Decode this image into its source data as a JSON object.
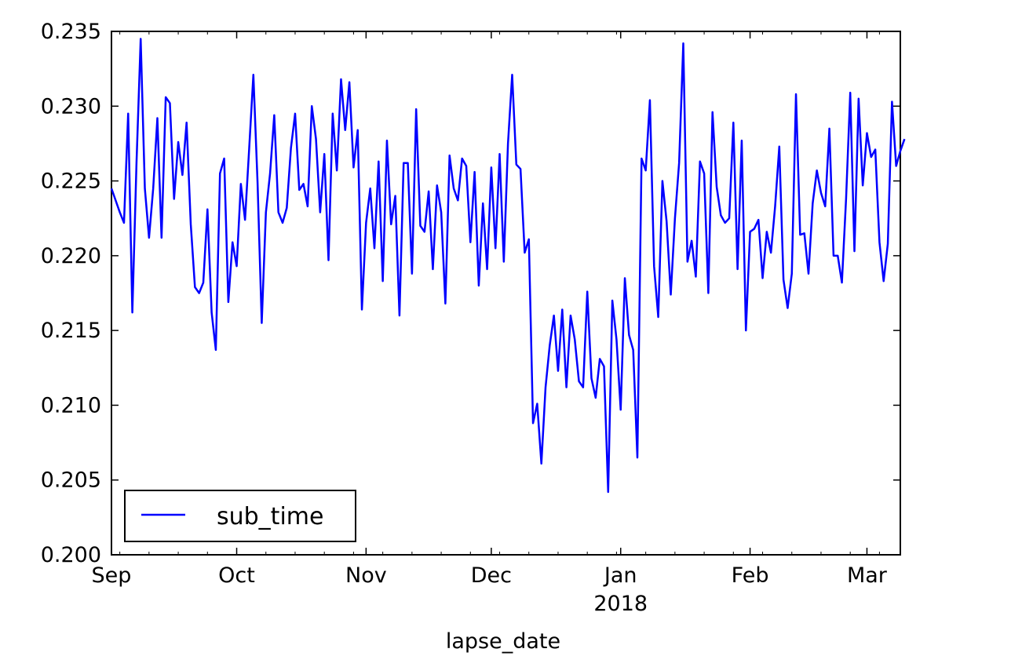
{
  "chart_data": {
    "type": "line",
    "title": "",
    "xlabel": "lapse_date",
    "ylabel": "",
    "xlim": [
      "2017-09-01",
      "2018-03-09"
    ],
    "ylim": [
      0.2,
      0.235
    ],
    "x_ticks": [
      {
        "date": "2017-09-01",
        "label": "Sep"
      },
      {
        "date": "2017-10-01",
        "label": "Oct"
      },
      {
        "date": "2017-11-01",
        "label": "Nov"
      },
      {
        "date": "2017-12-01",
        "label": "Dec"
      },
      {
        "date": "2018-01-01",
        "label": "Jan"
      },
      {
        "date": "2018-02-01",
        "label": "Feb"
      },
      {
        "date": "2018-03-01",
        "label": "Mar"
      }
    ],
    "x_sublabel": {
      "date": "2018-01-01",
      "label": "2018"
    },
    "y_ticks": [
      "0.200",
      "0.205",
      "0.210",
      "0.215",
      "0.220",
      "0.225",
      "0.230",
      "0.235"
    ],
    "grid": false,
    "legend": {
      "position": "lower-left",
      "entries": [
        {
          "name": "sub_time",
          "color": "#0000ff"
        }
      ]
    },
    "series": [
      {
        "name": "sub_time",
        "color": "#0000ff",
        "x_start": "2017-09-01",
        "x_step_days": 1,
        "values": [
          0.2245,
          0.2237,
          0.2229,
          0.2222,
          0.2295,
          0.2162,
          0.2262,
          0.2345,
          0.2245,
          0.2212,
          0.2245,
          0.2292,
          0.2212,
          0.2306,
          0.2302,
          0.2238,
          0.2276,
          0.2254,
          0.2289,
          0.2221,
          0.2179,
          0.2175,
          0.2182,
          0.2231,
          0.2162,
          0.2137,
          0.2255,
          0.2265,
          0.2169,
          0.2209,
          0.2193,
          0.2248,
          0.2224,
          0.2272,
          0.2321,
          0.2249,
          0.2155,
          0.2229,
          0.2255,
          0.2294,
          0.2229,
          0.2222,
          0.2232,
          0.2272,
          0.2295,
          0.2244,
          0.2248,
          0.2233,
          0.23,
          0.2278,
          0.2229,
          0.2268,
          0.2197,
          0.2295,
          0.2257,
          0.2318,
          0.2284,
          0.2316,
          0.2259,
          0.2284,
          0.2164,
          0.2222,
          0.2245,
          0.2205,
          0.2263,
          0.2183,
          0.2277,
          0.2221,
          0.224,
          0.216,
          0.2262,
          0.2262,
          0.2188,
          0.2298,
          0.222,
          0.2216,
          0.2243,
          0.2191,
          0.2247,
          0.2229,
          0.2168,
          0.2267,
          0.2245,
          0.2237,
          0.2265,
          0.226,
          0.2209,
          0.2256,
          0.218,
          0.2235,
          0.2191,
          0.2259,
          0.2205,
          0.2268,
          0.2196,
          0.2275,
          0.2321,
          0.2261,
          0.2258,
          0.2202,
          0.2211,
          0.2088,
          0.2101,
          0.2061,
          0.2112,
          0.214,
          0.216,
          0.2123,
          0.2164,
          0.2112,
          0.216,
          0.2144,
          0.2116,
          0.2112,
          0.2176,
          0.2118,
          0.2105,
          0.2131,
          0.2126,
          0.2042,
          0.217,
          0.2144,
          0.2097,
          0.2185,
          0.2147,
          0.2137,
          0.2065,
          0.2265,
          0.2257,
          0.2304,
          0.2193,
          0.2159,
          0.225,
          0.2223,
          0.2174,
          0.2225,
          0.2262,
          0.2342,
          0.2196,
          0.221,
          0.2186,
          0.2263,
          0.2255,
          0.2175,
          0.2296,
          0.2246,
          0.2227,
          0.2222,
          0.2225,
          0.2289,
          0.2191,
          0.2277,
          0.215,
          0.2216,
          0.2218,
          0.2224,
          0.2185,
          0.2216,
          0.2202,
          0.2233,
          0.2273,
          0.2184,
          0.2165,
          0.2188,
          0.2308,
          0.2214,
          0.2215,
          0.2188,
          0.2235,
          0.2257,
          0.2242,
          0.2233,
          0.2285,
          0.22,
          0.22,
          0.2182,
          0.2238,
          0.2309,
          0.2203,
          0.2305,
          0.2247,
          0.2282,
          0.2266,
          0.2271,
          0.2209,
          0.2183,
          0.2208,
          0.2303,
          0.226,
          0.227,
          0.2278
        ]
      }
    ]
  }
}
